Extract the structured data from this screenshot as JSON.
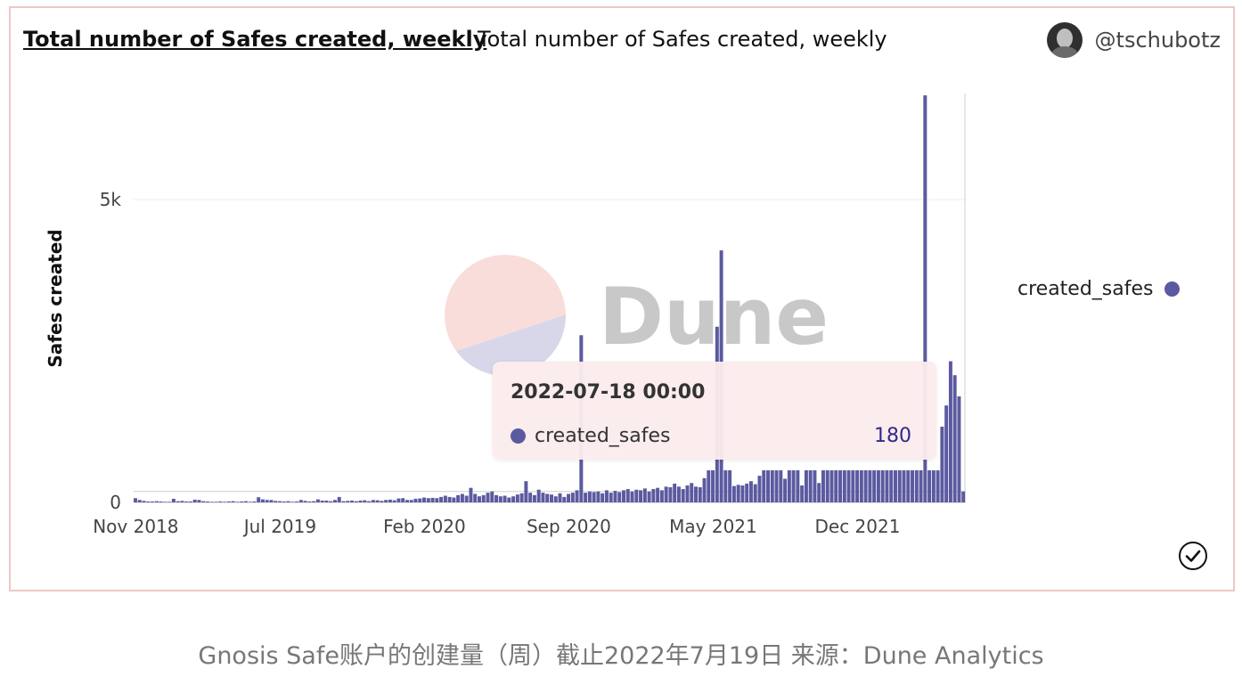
{
  "header": {
    "title": "Total number of Safes created, weekly",
    "subtitle": "Total number of Safes created, weekly",
    "author": "@tschubotz"
  },
  "watermark": {
    "text": "Dune"
  },
  "legend": {
    "label": "created_safes"
  },
  "tooltip": {
    "date": "2022-07-18 00:00",
    "series": "created_safes",
    "value": "180"
  },
  "caption": "Gnosis Safe账户的创建量（周）截止2022年7月19日 来源：Dune Analytics",
  "colors": {
    "bar": "#5b5aa0",
    "border": "#ecc7c7",
    "tooltip_value": "#2e2a8a"
  },
  "icons": {
    "status": "check-circle-icon"
  },
  "chart_data": {
    "type": "bar",
    "title": "Total number of Safes created, weekly",
    "xlabel": "",
    "ylabel": "Safes created",
    "series_name": "created_safes",
    "ylim": [
      0,
      6750
    ],
    "yticks": [
      {
        "label": "0",
        "value": 0
      },
      {
        "label": "5k",
        "value": 5000
      }
    ],
    "xticks": [
      {
        "label": "Nov 2018",
        "week": 0
      },
      {
        "label": "Jul 2019",
        "week": 34
      },
      {
        "label": "Feb 2020",
        "week": 68
      },
      {
        "label": "Sep 2020",
        "week": 102
      },
      {
        "label": "May 2021",
        "week": 136
      },
      {
        "label": "Dec 2021",
        "week": 170
      }
    ],
    "grid": true,
    "legend_position": "right",
    "start_label": "2018-11",
    "end_label": "2022-07-18",
    "values": [
      70,
      40,
      25,
      15,
      15,
      20,
      15,
      10,
      10,
      60,
      20,
      25,
      15,
      15,
      45,
      40,
      20,
      15,
      10,
      10,
      15,
      10,
      15,
      20,
      10,
      15,
      20,
      10,
      15,
      85,
      50,
      40,
      40,
      25,
      20,
      15,
      20,
      10,
      15,
      40,
      25,
      15,
      20,
      50,
      30,
      30,
      20,
      40,
      90,
      20,
      25,
      30,
      20,
      30,
      35,
      20,
      40,
      35,
      25,
      40,
      45,
      35,
      65,
      70,
      40,
      40,
      60,
      65,
      80,
      70,
      75,
      70,
      90,
      110,
      90,
      80,
      120,
      140,
      110,
      240,
      140,
      100,
      120,
      160,
      180,
      120,
      100,
      110,
      80,
      100,
      130,
      150,
      350,
      160,
      120,
      210,
      160,
      140,
      130,
      100,
      150,
      90,
      140,
      160,
      200,
      2760,
      160,
      180,
      170,
      180,
      150,
      200,
      160,
      190,
      170,
      200,
      220,
      180,
      210,
      200,
      230,
      180,
      220,
      240,
      200,
      260,
      250,
      310,
      260,
      220,
      280,
      320,
      260,
      250,
      400,
      530,
      530,
      2900,
      4160,
      530,
      530,
      270,
      290,
      280,
      310,
      350,
      300,
      440,
      530,
      530,
      530,
      530,
      530,
      390,
      530,
      530,
      530,
      280,
      530,
      530,
      530,
      320,
      530,
      530,
      530,
      530,
      530,
      530,
      530,
      530,
      530,
      530,
      530,
      530,
      530,
      530,
      530,
      530,
      530,
      530,
      530,
      530,
      530,
      530,
      530,
      530,
      6720,
      530,
      530,
      530,
      1250,
      1600,
      2330,
      2100,
      1750,
      180
    ]
  }
}
